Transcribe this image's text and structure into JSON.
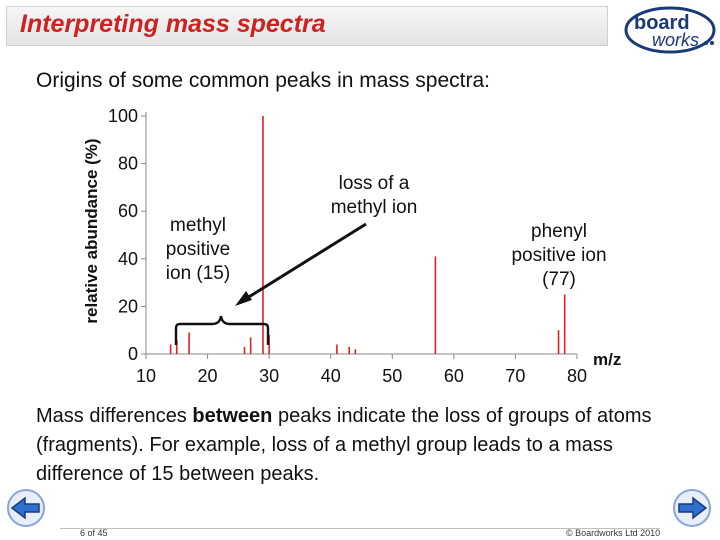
{
  "header": {
    "title": "Interpreting mass spectra",
    "logo_text_1": "board",
    "logo_text_2": "works"
  },
  "subtitle": "Origins of some common peaks in mass spectra:",
  "chart_data": {
    "type": "bar",
    "ylabel": "relative abundance (%)",
    "xlabel": "m/z",
    "xlim": [
      10,
      80
    ],
    "ylim": [
      0,
      100
    ],
    "xticks": [
      "10",
      "20",
      "30",
      "40",
      "50",
      "60",
      "70",
      "80"
    ],
    "yticks": [
      "0",
      "20",
      "40",
      "60",
      "80",
      "100"
    ],
    "x": [
      14,
      15,
      17,
      26,
      27,
      29,
      30,
      41,
      43,
      44,
      57,
      77,
      78
    ],
    "values": [
      4,
      6,
      9,
      3,
      7,
      100,
      8,
      4,
      3,
      2,
      41,
      10,
      25
    ],
    "annotations": [
      {
        "text_lines": [
          "methyl",
          "positive",
          "ion (15)"
        ]
      },
      {
        "text_lines": [
          "loss of a",
          "methyl ion"
        ]
      },
      {
        "text_lines": [
          "phenyl",
          "positive ion",
          "(77)"
        ]
      }
    ]
  },
  "paragraph": {
    "before": "Mass differences ",
    "bold": "between",
    "after": " peaks indicate the loss of groups of atoms (fragments). For example, loss of a methyl group leads to a mass difference of 15 between peaks."
  },
  "footer": {
    "page": "6 of 45",
    "copyright": "© Boardworks Ltd 2010"
  },
  "colors": {
    "accent": "#cc2222",
    "peak": "#dd2222",
    "nav": "#2f6fd0"
  }
}
